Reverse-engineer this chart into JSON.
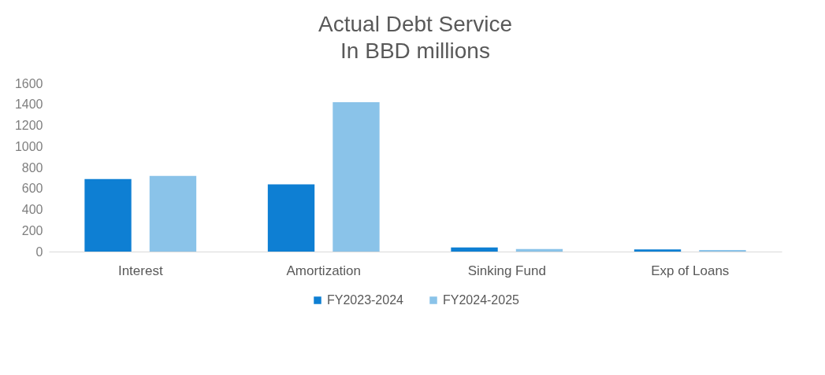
{
  "chart_data": {
    "type": "bar",
    "title": "Actual Debt Service",
    "subtitle": "In BBD millions",
    "categories": [
      "Interest",
      "Amortization",
      "Sinking Fund",
      "Exp of Loans"
    ],
    "series": [
      {
        "name": "FY2023-2024",
        "color": "#0e7fd3",
        "values": [
          690,
          640,
          40,
          20
        ]
      },
      {
        "name": "FY2024-2025",
        "color": "#8ac3e9",
        "values": [
          720,
          1420,
          25,
          15
        ]
      }
    ],
    "ylim": [
      0,
      1600
    ],
    "yticks": [
      0,
      200,
      400,
      600,
      800,
      1000,
      1200,
      1400,
      1600
    ],
    "grid": false,
    "legend": "bottom"
  }
}
